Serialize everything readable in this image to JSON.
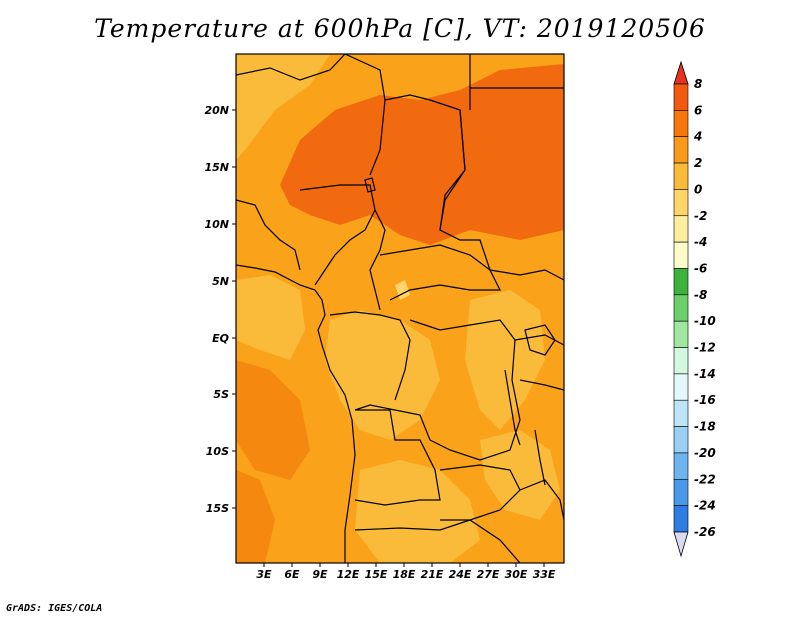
{
  "title": "Temperature at 600hPa [C], VT: 2019120506",
  "credit": "GrADS: IGES/COLA",
  "lat_ticks": [
    "20N",
    "15N",
    "10N",
    "5N",
    "EQ",
    "5S",
    "10S",
    "15S"
  ],
  "lon_ticks": [
    "3E",
    "6E",
    "9E",
    "12E",
    "15E",
    "18E",
    "21E",
    "24E",
    "27E",
    "30E",
    "33E"
  ],
  "colorbar": {
    "labels": [
      "8",
      "6",
      "4",
      "2",
      "0",
      "-2",
      "-4",
      "-6",
      "-8",
      "-10",
      "-12",
      "-14",
      "-16",
      "-18",
      "-20",
      "-22",
      "-24",
      "-26"
    ],
    "colors": [
      "#e8331c",
      "#f25a10",
      "#f7760d",
      "#f99a1c",
      "#fbbb3a",
      "#fdd56b",
      "#fdeea0",
      "#fefcc8",
      "#3db33d",
      "#6bd06b",
      "#a0e8a0",
      "#d4f7e0",
      "#e4f7fb",
      "#bde4f7",
      "#99cff5",
      "#6eb5f0",
      "#4a99e8",
      "#2e7de0",
      "#1d61cc",
      "#1248b0",
      "#0a2f88",
      "#071566",
      "#dadaf2"
    ]
  },
  "map_colors": {
    "hot": "#f26a0f",
    "warm": "#f5880f",
    "mid": "#f9a21a",
    "mild": "#fbbb3a",
    "light": "#fdd56b"
  }
}
